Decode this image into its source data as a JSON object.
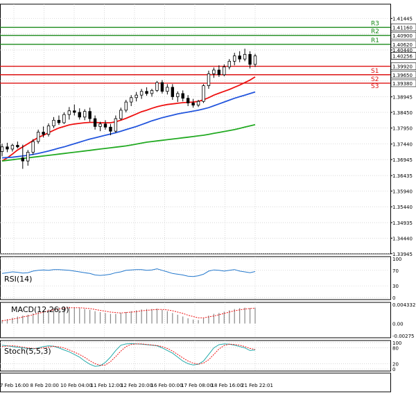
{
  "chart_data": {
    "type": "candlestick",
    "price_axis": {
      "ticks": [
        "1.41445",
        "1.40950",
        "1.40440",
        "1.39450",
        "1.38945",
        "1.38450",
        "1.37950",
        "1.37440",
        "1.36945",
        "1.36435",
        "1.35940",
        "1.35440",
        "1.34935",
        "1.34440",
        "1.33945"
      ],
      "tick_values": [
        1.41445,
        1.4095,
        1.4044,
        1.3945,
        1.38945,
        1.3845,
        1.3795,
        1.3744,
        1.36945,
        1.36435,
        1.3594,
        1.3544,
        1.34935,
        1.3444,
        1.33945
      ],
      "ylim": [
        1.3394,
        1.419
      ]
    },
    "time_axis": {
      "ticks": [
        "7 Feb 16:00",
        "8 Feb 20:00",
        "10 Feb 04:00",
        "11 Feb 12:00",
        "12 Feb 20:00",
        "16 Feb 00:00",
        "17 Feb 08:00",
        "18 Feb 16:00",
        "21 Feb 22:01"
      ]
    },
    "levels": [
      {
        "name": "R3",
        "value": 1.4116,
        "label": "1.41160",
        "color": "#1a8a1a"
      },
      {
        "name": "R2",
        "value": 1.409,
        "label": "1.40900",
        "color": "#1a8a1a"
      },
      {
        "name": "R1",
        "value": 1.4062,
        "label": "1.40620",
        "color": "#1a8a1a"
      },
      {
        "name": "",
        "value": 1.3992,
        "label": "1.39920",
        "color": "#dd1111"
      },
      {
        "name": "S1",
        "value": 1.3965,
        "label": "1.39650",
        "color": "#dd1111"
      },
      {
        "name": "S2",
        "value": 1.3938,
        "label": "1.39380",
        "color": "#dd1111"
      },
      {
        "name": "S3",
        "value": null,
        "label": "",
        "color": "#dd1111"
      }
    ],
    "current_price": {
      "value": 1.40256,
      "label": "1.40256"
    },
    "candles": [
      {
        "o": 1.372,
        "h": 1.3745,
        "l": 1.3705,
        "c": 1.3735
      },
      {
        "o": 1.3735,
        "h": 1.3748,
        "l": 1.3718,
        "c": 1.3728
      },
      {
        "o": 1.3728,
        "h": 1.3745,
        "l": 1.372,
        "c": 1.374
      },
      {
        "o": 1.374,
        "h": 1.3752,
        "l": 1.373,
        "c": 1.3735
      },
      {
        "o": 1.37,
        "h": 1.3742,
        "l": 1.3665,
        "c": 1.369
      },
      {
        "o": 1.369,
        "h": 1.3725,
        "l": 1.3675,
        "c": 1.3718
      },
      {
        "o": 1.3718,
        "h": 1.376,
        "l": 1.371,
        "c": 1.3752
      },
      {
        "o": 1.3752,
        "h": 1.379,
        "l": 1.3745,
        "c": 1.3782
      },
      {
        "o": 1.3782,
        "h": 1.38,
        "l": 1.3765,
        "c": 1.3775
      },
      {
        "o": 1.3775,
        "h": 1.381,
        "l": 1.3768,
        "c": 1.3802
      },
      {
        "o": 1.3802,
        "h": 1.383,
        "l": 1.3795,
        "c": 1.382
      },
      {
        "o": 1.382,
        "h": 1.3835,
        "l": 1.3805,
        "c": 1.3812
      },
      {
        "o": 1.3812,
        "h": 1.3845,
        "l": 1.3808,
        "c": 1.3838
      },
      {
        "o": 1.3838,
        "h": 1.3862,
        "l": 1.3822,
        "c": 1.385
      },
      {
        "o": 1.385,
        "h": 1.387,
        "l": 1.3835,
        "c": 1.3845
      },
      {
        "o": 1.3845,
        "h": 1.3858,
        "l": 1.3822,
        "c": 1.383
      },
      {
        "o": 1.383,
        "h": 1.3855,
        "l": 1.382,
        "c": 1.3848
      },
      {
        "o": 1.3848,
        "h": 1.386,
        "l": 1.3815,
        "c": 1.3825
      },
      {
        "o": 1.3825,
        "h": 1.3835,
        "l": 1.379,
        "c": 1.38
      },
      {
        "o": 1.38,
        "h": 1.3815,
        "l": 1.3785,
        "c": 1.3808
      },
      {
        "o": 1.3808,
        "h": 1.382,
        "l": 1.379,
        "c": 1.3798
      },
      {
        "o": 1.3798,
        "h": 1.3808,
        "l": 1.3772,
        "c": 1.3785
      },
      {
        "o": 1.3785,
        "h": 1.3835,
        "l": 1.378,
        "c": 1.3825
      },
      {
        "o": 1.3825,
        "h": 1.386,
        "l": 1.382,
        "c": 1.3852
      },
      {
        "o": 1.3852,
        "h": 1.3885,
        "l": 1.3845,
        "c": 1.3878
      },
      {
        "o": 1.3878,
        "h": 1.39,
        "l": 1.3865,
        "c": 1.3892
      },
      {
        "o": 1.3892,
        "h": 1.391,
        "l": 1.388,
        "c": 1.39
      },
      {
        "o": 1.39,
        "h": 1.392,
        "l": 1.3888,
        "c": 1.3912
      },
      {
        "o": 1.3912,
        "h": 1.3925,
        "l": 1.3898,
        "c": 1.3905
      },
      {
        "o": 1.3905,
        "h": 1.392,
        "l": 1.3895,
        "c": 1.3915
      },
      {
        "o": 1.3915,
        "h": 1.3945,
        "l": 1.391,
        "c": 1.394
      },
      {
        "o": 1.394,
        "h": 1.3948,
        "l": 1.3905,
        "c": 1.3912
      },
      {
        "o": 1.3912,
        "h": 1.3935,
        "l": 1.3902,
        "c": 1.3925
      },
      {
        "o": 1.3925,
        "h": 1.3935,
        "l": 1.3885,
        "c": 1.3895
      },
      {
        "o": 1.3895,
        "h": 1.3912,
        "l": 1.3878,
        "c": 1.3905
      },
      {
        "o": 1.3905,
        "h": 1.3915,
        "l": 1.388,
        "c": 1.389
      },
      {
        "o": 1.389,
        "h": 1.39,
        "l": 1.3865,
        "c": 1.3875
      },
      {
        "o": 1.3875,
        "h": 1.3888,
        "l": 1.386,
        "c": 1.3868
      },
      {
        "o": 1.3868,
        "h": 1.3885,
        "l": 1.3862,
        "c": 1.388
      },
      {
        "o": 1.388,
        "h": 1.3935,
        "l": 1.3875,
        "c": 1.393
      },
      {
        "o": 1.393,
        "h": 1.3978,
        "l": 1.392,
        "c": 1.3968
      },
      {
        "o": 1.3968,
        "h": 1.3988,
        "l": 1.3955,
        "c": 1.398
      },
      {
        "o": 1.398,
        "h": 1.3995,
        "l": 1.3958,
        "c": 1.3965
      },
      {
        "o": 1.3965,
        "h": 1.3998,
        "l": 1.396,
        "c": 1.399
      },
      {
        "o": 1.399,
        "h": 1.4015,
        "l": 1.3982,
        "c": 1.4008
      },
      {
        "o": 1.4008,
        "h": 1.4035,
        "l": 1.3995,
        "c": 1.4025
      },
      {
        "o": 1.4025,
        "h": 1.404,
        "l": 1.4005,
        "c": 1.4015
      },
      {
        "o": 1.4015,
        "h": 1.4048,
        "l": 1.4008,
        "c": 1.403
      },
      {
        "o": 1.403,
        "h": 1.404,
        "l": 1.3985,
        "c": 1.3998
      },
      {
        "o": 1.3998,
        "h": 1.4032,
        "l": 1.399,
        "c": 1.4025
      }
    ],
    "moving_averages": [
      {
        "color": "#ee1111",
        "values": [
          1.369,
          1.37,
          1.3712,
          1.3725,
          1.3735,
          1.3745,
          1.3755,
          1.3765,
          1.3772,
          1.378,
          1.3788,
          1.3795,
          1.38,
          1.3805,
          1.3808,
          1.381,
          1.3812,
          1.3813,
          1.3813,
          1.3812,
          1.3812,
          1.3812,
          1.3815,
          1.382,
          1.3826,
          1.3833,
          1.384,
          1.3847,
          1.3852,
          1.3858,
          1.3863,
          1.3867,
          1.387,
          1.3872,
          1.3874,
          1.3876,
          1.3877,
          1.3878,
          1.388,
          1.3885,
          1.3892,
          1.39,
          1.3906,
          1.3912,
          1.3918,
          1.3925,
          1.3932,
          1.394,
          1.3948,
          1.3958
        ]
      },
      {
        "color": "#2255dd",
        "values": [
          1.37,
          1.3701,
          1.3702,
          1.3704,
          1.3706,
          1.3708,
          1.3711,
          1.3714,
          1.3718,
          1.3722,
          1.3726,
          1.3731,
          1.3735,
          1.374,
          1.3745,
          1.375,
          1.3755,
          1.376,
          1.3764,
          1.3768,
          1.3772,
          1.3776,
          1.378,
          1.3785,
          1.379,
          1.3795,
          1.38,
          1.3806,
          1.3812,
          1.3818,
          1.3823,
          1.3828,
          1.3832,
          1.3836,
          1.384,
          1.3843,
          1.3846,
          1.3849,
          1.3852,
          1.3856,
          1.386,
          1.3866,
          1.3872,
          1.3878,
          1.3884,
          1.389,
          1.3895,
          1.39,
          1.3905,
          1.391
        ]
      },
      {
        "color": "#22aa22",
        "values": [
          1.369,
          1.3692,
          1.3694,
          1.3696,
          1.3698,
          1.37,
          1.3702,
          1.3704,
          1.3706,
          1.3708,
          1.371,
          1.3712,
          1.3714,
          1.3716,
          1.3718,
          1.372,
          1.3722,
          1.3724,
          1.3726,
          1.3728,
          1.373,
          1.3732,
          1.3734,
          1.3736,
          1.3738,
          1.3741,
          1.3744,
          1.3747,
          1.375,
          1.3752,
          1.3754,
          1.3756,
          1.3758,
          1.376,
          1.3762,
          1.3764,
          1.3766,
          1.3768,
          1.377,
          1.3772,
          1.3775,
          1.3778,
          1.3781,
          1.3784,
          1.3787,
          1.379,
          1.3794,
          1.3798,
          1.3802,
          1.3806
        ]
      }
    ],
    "indicators": {
      "rsi": {
        "title": "RSI(14)",
        "ticks": [
          "100",
          "70",
          "30",
          "0"
        ],
        "tick_values": [
          100,
          70,
          30,
          0
        ],
        "color": "#2277cc",
        "values": [
          62,
          64,
          66,
          65,
          63,
          64,
          68,
          70,
          71,
          70,
          72,
          72,
          71,
          70,
          68,
          66,
          64,
          62,
          58,
          57,
          58,
          60,
          64,
          66,
          70,
          71,
          72,
          72,
          70,
          71,
          74,
          70,
          66,
          62,
          60,
          58,
          55,
          54,
          56,
          60,
          68,
          71,
          70,
          68,
          70,
          72,
          68,
          66,
          64,
          67
        ]
      },
      "macd": {
        "title": "MACD(12,26,9)",
        "ticks": [
          "0.004332",
          "0.00",
          "-0.00275"
        ],
        "tick_values": [
          0.004332,
          0.0,
          -0.00275
        ],
        "histogram_color": "#888888",
        "signal_color": "#ee1111",
        "histogram": [
          0.0008,
          0.001,
          0.0013,
          0.0016,
          0.0018,
          0.002,
          0.0023,
          0.0027,
          0.003,
          0.0032,
          0.0035,
          0.0037,
          0.0038,
          0.0038,
          0.0037,
          0.0035,
          0.0033,
          0.0031,
          0.0028,
          0.0026,
          0.0024,
          0.0022,
          0.0022,
          0.0024,
          0.0026,
          0.0028,
          0.003,
          0.0032,
          0.0033,
          0.0033,
          0.0034,
          0.0031,
          0.0028,
          0.0024,
          0.002,
          0.0016,
          0.0012,
          0.0009,
          0.0008,
          0.0012,
          0.0018,
          0.0022,
          0.0024,
          0.0027,
          0.003,
          0.0033,
          0.0035,
          0.0036,
          0.0035,
          0.0036
        ],
        "signal": [
          0.0006,
          0.0008,
          0.001,
          0.0012,
          0.0015,
          0.0017,
          0.002,
          0.0023,
          0.0026,
          0.0029,
          0.0031,
          0.0033,
          0.0035,
          0.0036,
          0.0036,
          0.0036,
          0.0035,
          0.0034,
          0.0032,
          0.003,
          0.0028,
          0.0026,
          0.0025,
          0.0024,
          0.0025,
          0.0026,
          0.0027,
          0.0029,
          0.003,
          0.0031,
          0.0032,
          0.0032,
          0.0031,
          0.0029,
          0.0026,
          0.0023,
          0.0019,
          0.0016,
          0.0013,
          0.0013,
          0.0015,
          0.0017,
          0.002,
          0.0023,
          0.0026,
          0.0029,
          0.0031,
          0.0033,
          0.0034,
          0.0035
        ]
      },
      "stoch": {
        "title": "Stoch(5,5,3)",
        "ticks": [
          "100",
          "80",
          "20",
          "0"
        ],
        "tick_values": [
          100,
          80,
          20,
          0
        ],
        "k_color": "#22aaaa",
        "d_color": "#ee1111",
        "k": [
          90,
          88,
          85,
          82,
          80,
          78,
          76,
          80,
          85,
          88,
          86,
          80,
          72,
          65,
          55,
          45,
          30,
          18,
          10,
          12,
          25,
          45,
          70,
          90,
          95,
          96,
          95,
          94,
          92,
          90,
          88,
          80,
          70,
          60,
          45,
          30,
          20,
          15,
          18,
          30,
          55,
          80,
          92,
          95,
          94,
          90,
          85,
          80,
          70,
          72
        ],
        "d": [
          85,
          87,
          88,
          86,
          83,
          80,
          78,
          78,
          80,
          83,
          86,
          84,
          80,
          72,
          64,
          55,
          44,
          31,
          20,
          14,
          15,
          28,
          47,
          68,
          85,
          93,
          95,
          95,
          93,
          91,
          89,
          85,
          78,
          68,
          55,
          42,
          30,
          22,
          18,
          22,
          35,
          55,
          76,
          89,
          94,
          93,
          90,
          85,
          78,
          74
        ]
      }
    }
  }
}
